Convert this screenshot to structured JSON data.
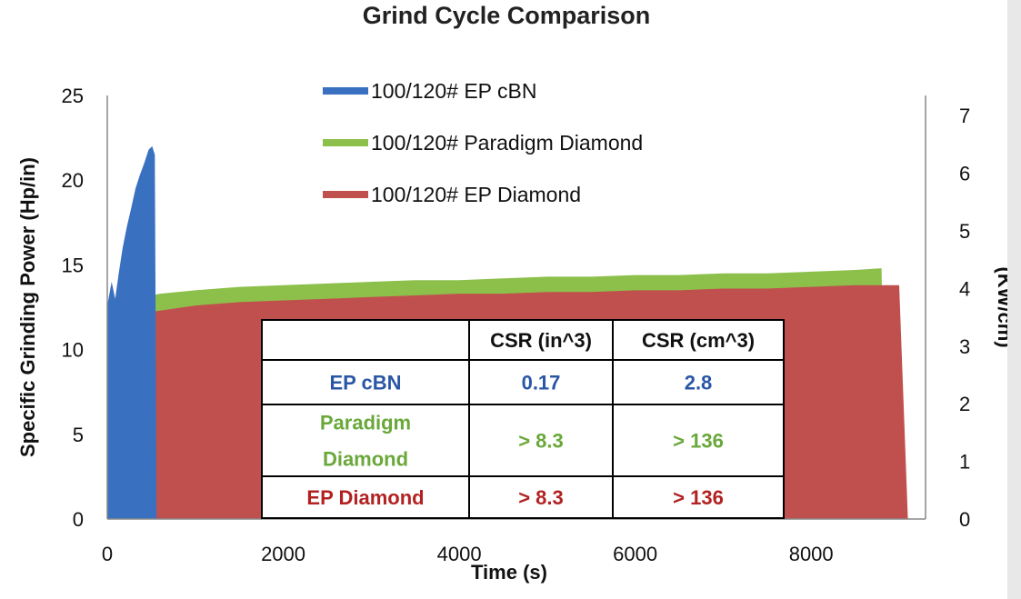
{
  "chart_data": {
    "type": "area",
    "title": "Grind Cycle Comparison",
    "xlabel": "Time (s)",
    "ylabel": "Specific Grinding Power (Hp/in)",
    "y2label": "(KW/cm)",
    "xlim": [
      0,
      9300
    ],
    "ylim": [
      0,
      25
    ],
    "y2lim": [
      0,
      7.35
    ],
    "xticks": [
      "0",
      "2000",
      "4000",
      "6000",
      "8000"
    ],
    "yticks": [
      "0",
      "5",
      "10",
      "15",
      "20",
      "25"
    ],
    "y2ticks": [
      "0",
      "1",
      "2",
      "3",
      "4",
      "5",
      "6",
      "7"
    ],
    "legend_position": "top-center",
    "series": [
      {
        "name": "100/120# EP cBN",
        "color": "#3a70c0",
        "x": [
          0,
          50,
          90,
          130,
          175,
          220,
          270,
          320,
          370,
          420,
          470,
          510,
          540,
          560
        ],
        "y": [
          12.6,
          14.0,
          13.0,
          14.5,
          16.0,
          17.2,
          18.3,
          19.5,
          20.3,
          21.0,
          21.8,
          22.0,
          21.5,
          0
        ]
      },
      {
        "name": "100/120# Paradigm Diamond",
        "color": "#8cc04b",
        "x": [
          0,
          200,
          600,
          1000,
          1500,
          2000,
          2500,
          3000,
          3500,
          4000,
          4500,
          5000,
          5500,
          6000,
          6500,
          7000,
          7500,
          8000,
          8500,
          8800,
          8850
        ],
        "y": [
          12.5,
          12.9,
          13.3,
          13.5,
          13.7,
          13.8,
          13.9,
          14.0,
          14.1,
          14.1,
          14.2,
          14.3,
          14.3,
          14.4,
          14.4,
          14.5,
          14.5,
          14.6,
          14.7,
          14.8,
          0
        ]
      },
      {
        "name": "100/120# EP Diamond",
        "color": "#c0504d",
        "x": [
          0,
          200,
          600,
          1000,
          1500,
          2000,
          2500,
          3000,
          3500,
          4000,
          4500,
          5000,
          5500,
          6000,
          6500,
          7000,
          7500,
          8000,
          8500,
          9000,
          9100
        ],
        "y": [
          11.5,
          12.0,
          12.3,
          12.6,
          12.8,
          12.9,
          13.0,
          13.1,
          13.2,
          13.3,
          13.3,
          13.4,
          13.4,
          13.5,
          13.5,
          13.6,
          13.6,
          13.7,
          13.8,
          13.8,
          0
        ]
      }
    ],
    "table": {
      "headers": [
        "",
        "CSR (in^3)",
        "CSR (cm^3)"
      ],
      "rows": [
        {
          "label": [
            "EP cBN"
          ],
          "in3": "0.17",
          "cm3": "2.8",
          "color": "#2a56a6"
        },
        {
          "label": [
            "Paradigm",
            "Diamond"
          ],
          "in3": "> 8.3",
          "cm3": "> 136",
          "color": "#6aa83a"
        },
        {
          "label": [
            "EP Diamond"
          ],
          "in3": "> 8.3",
          "cm3": "> 136",
          "color": "#b22222"
        }
      ]
    }
  }
}
